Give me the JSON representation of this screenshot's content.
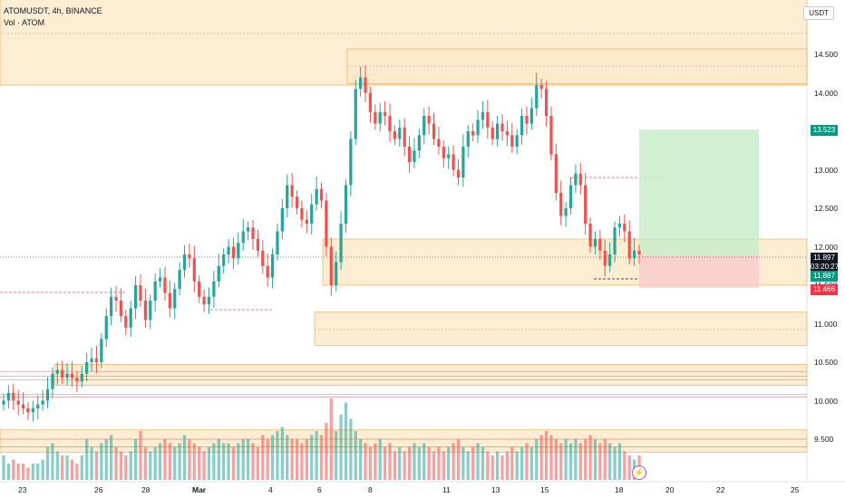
{
  "legend": {
    "symbol_line": "ATOMUSDT, 4h, BINANCE",
    "volume_line": "Vol · ATOM"
  },
  "currency": "USDT",
  "y_axis_labels": [
    "14.500",
    "14.000",
    "13.500",
    "13.000",
    "12.500",
    "12.000",
    "11.500",
    "11.000",
    "10.500",
    "10.000",
    "9.500"
  ],
  "x_axis_labels": [
    "23",
    "26",
    "28",
    "Mar",
    "4",
    "6",
    "8",
    "11",
    "13",
    "15",
    "18",
    "20",
    "22",
    "25"
  ],
  "price_tags": {
    "target": "13.523",
    "last_price": "11.897",
    "countdown": "03:20:27",
    "entry": "11.887",
    "stop": "11.466"
  },
  "colors": {
    "up": "#26a69a",
    "down": "#ef5350",
    "zone_fill": "#fde8c8",
    "zone_stroke": "#e8a14c",
    "target_fill": "#c9ecc9",
    "stop_fill": "#f8cccc",
    "axis_text": "#131722"
  },
  "chart_data": {
    "type": "candlestick",
    "symbol": "ATOMUSDT",
    "interval": "4h",
    "exchange": "BINANCE",
    "ylim": [
      9.2,
      14.8
    ],
    "x_tick_labels": [
      "23",
      "26",
      "28",
      "Mar",
      "4",
      "6",
      "8",
      "11",
      "13",
      "15",
      "18",
      "20",
      "22",
      "25"
    ],
    "y_tick_labels": [
      "14.500",
      "14.000",
      "13.500",
      "13.000",
      "12.500",
      "12.000",
      "11.500",
      "11.000",
      "10.500",
      "10.000",
      "9.500"
    ],
    "last_price": 11.897,
    "close_series": [
      10.0,
      10.1,
      10.0,
      9.95,
      9.9,
      9.85,
      9.9,
      9.95,
      10.0,
      10.15,
      10.35,
      10.4,
      10.3,
      10.35,
      10.3,
      10.25,
      10.35,
      10.5,
      10.55,
      10.5,
      10.8,
      11.1,
      11.35,
      11.3,
      11.1,
      10.95,
      11.2,
      11.5,
      11.3,
      11.05,
      11.3,
      11.55,
      11.6,
      11.4,
      11.2,
      11.45,
      11.7,
      11.9,
      11.85,
      11.55,
      11.35,
      11.25,
      11.35,
      11.55,
      11.75,
      11.9,
      12.0,
      11.85,
      12.05,
      12.2,
      12.25,
      12.1,
      11.95,
      11.75,
      11.6,
      11.9,
      12.2,
      12.5,
      12.8,
      12.65,
      12.5,
      12.35,
      12.3,
      12.55,
      12.75,
      12.6,
      12.0,
      11.5,
      11.8,
      12.3,
      12.8,
      13.4,
      14.05,
      14.2,
      14.0,
      13.75,
      13.6,
      13.75,
      13.7,
      13.5,
      13.4,
      13.55,
      13.3,
      13.1,
      13.25,
      13.45,
      13.7,
      13.6,
      13.4,
      13.3,
      13.15,
      13.2,
      13.0,
      12.9,
      13.3,
      13.5,
      13.45,
      13.65,
      13.75,
      13.55,
      13.4,
      13.6,
      13.5,
      13.45,
      13.3,
      13.45,
      13.7,
      13.6,
      13.8,
      14.1,
      14.05,
      13.7,
      13.2,
      12.7,
      12.4,
      12.5,
      12.8,
      12.95,
      12.8,
      12.3,
      12.0,
      12.1,
      11.95,
      11.75,
      11.9,
      12.25,
      12.3,
      12.2,
      11.85,
      11.95,
      11.9
    ],
    "volume_series": [
      0.3,
      0.2,
      0.25,
      0.2,
      0.2,
      0.15,
      0.2,
      0.2,
      0.25,
      0.4,
      0.45,
      0.35,
      0.3,
      0.3,
      0.25,
      0.2,
      0.3,
      0.5,
      0.4,
      0.35,
      0.45,
      0.5,
      0.55,
      0.4,
      0.35,
      0.3,
      0.35,
      0.5,
      0.6,
      0.4,
      0.35,
      0.4,
      0.45,
      0.5,
      0.45,
      0.4,
      0.45,
      0.55,
      0.5,
      0.45,
      0.4,
      0.35,
      0.4,
      0.45,
      0.5,
      0.45,
      0.45,
      0.4,
      0.45,
      0.5,
      0.5,
      0.45,
      0.4,
      0.55,
      0.5,
      0.55,
      0.6,
      0.65,
      0.55,
      0.5,
      0.5,
      0.45,
      0.5,
      0.55,
      0.6,
      0.55,
      0.7,
      1.0,
      0.6,
      0.8,
      0.95,
      0.75,
      0.6,
      0.5,
      0.45,
      0.4,
      0.45,
      0.5,
      0.4,
      0.45,
      0.35,
      0.4,
      0.35,
      0.4,
      0.45,
      0.4,
      0.45,
      0.4,
      0.35,
      0.4,
      0.35,
      0.4,
      0.45,
      0.5,
      0.4,
      0.35,
      0.4,
      0.45,
      0.4,
      0.35,
      0.3,
      0.35,
      0.3,
      0.35,
      0.4,
      0.35,
      0.4,
      0.45,
      0.4,
      0.5,
      0.55,
      0.6,
      0.55,
      0.5,
      0.45,
      0.5,
      0.45,
      0.5,
      0.45,
      0.5,
      0.55,
      0.5,
      0.45,
      0.5,
      0.45,
      0.4,
      0.45,
      0.35,
      0.3,
      0.25,
      0.3
    ],
    "zones": [
      {
        "from": 14.1,
        "to": 15.3,
        "type": "supply"
      },
      {
        "from": 14.1,
        "to": 14.55,
        "type": "supply"
      },
      {
        "from": 11.5,
        "to": 12.1,
        "type": "demand"
      },
      {
        "from": 10.7,
        "to": 11.15,
        "type": "demand"
      },
      {
        "from": 10.2,
        "to": 10.45,
        "type": "demand"
      }
    ],
    "position": {
      "type": "long",
      "target": 13.523,
      "entry": 11.887,
      "stop": 11.466
    }
  }
}
